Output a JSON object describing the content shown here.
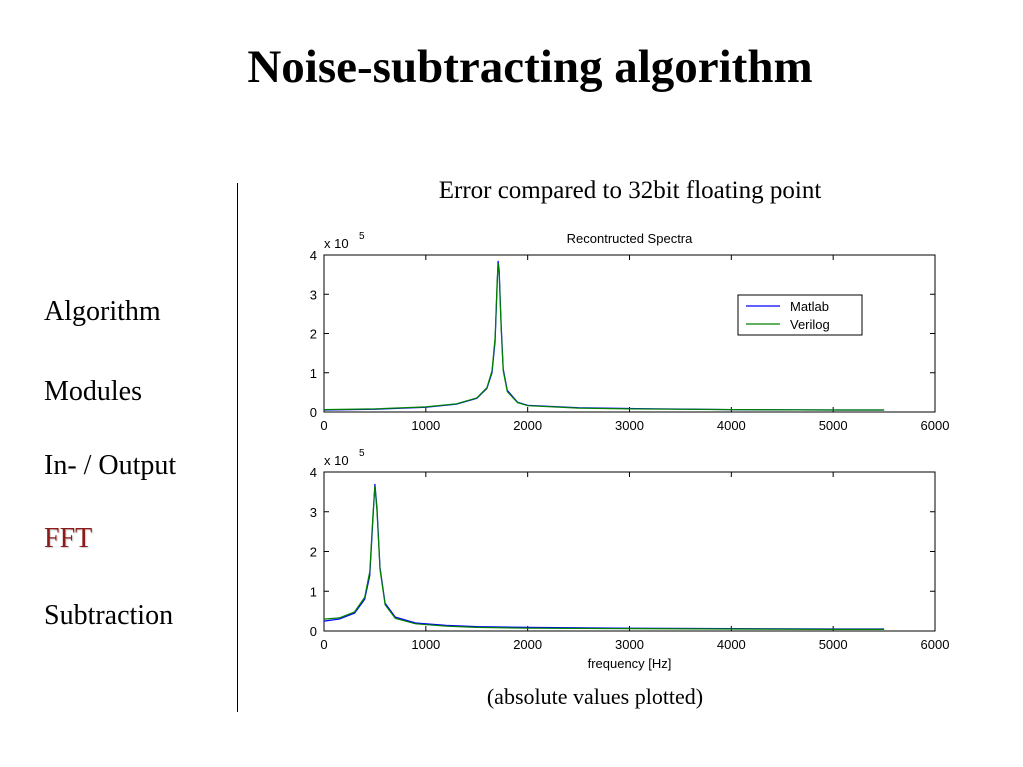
{
  "slide": {
    "title": "Noise-subtracting algorithm",
    "nav": [
      {
        "label": "Algorithm",
        "active": false
      },
      {
        "label": "Modules",
        "active": false
      },
      {
        "label": "In- / Output",
        "active": false
      },
      {
        "label": "FFT",
        "active": true
      },
      {
        "label": "Subtraction",
        "active": false
      }
    ],
    "active_color": "#8b1a1a",
    "chart_heading": "Error compared to 32bit floating point",
    "footnote": "(absolute values plotted)"
  },
  "chart_data": [
    {
      "type": "line",
      "title": "Recontructed Spectra",
      "xlabel": "",
      "ylabel": "",
      "exponent_label": "x 10",
      "exponent_power": "5",
      "xlim": [
        0,
        6000
      ],
      "ylim": [
        0,
        4
      ],
      "x_ticks": [
        0,
        1000,
        2000,
        3000,
        4000,
        5000,
        6000
      ],
      "y_ticks": [
        0,
        1,
        2,
        3,
        4
      ],
      "grid": false,
      "legend": "upper-right",
      "series": [
        {
          "name": "Matlab",
          "color": "#0000ff",
          "x": [
            0,
            500,
            1000,
            1300,
            1500,
            1600,
            1650,
            1680,
            1700,
            1710,
            1720,
            1740,
            1760,
            1800,
            1900,
            2000,
            2500,
            3000,
            4000,
            5000,
            5500
          ],
          "y": [
            0.05,
            0.07,
            0.12,
            0.2,
            0.35,
            0.6,
            1.0,
            1.8,
            3.2,
            3.85,
            3.6,
            2.2,
            1.1,
            0.55,
            0.25,
            0.17,
            0.11,
            0.09,
            0.06,
            0.05,
            0.05
          ]
        },
        {
          "name": "Verilog",
          "color": "#008000",
          "x": [
            0,
            500,
            1000,
            1300,
            1500,
            1600,
            1650,
            1680,
            1700,
            1710,
            1720,
            1740,
            1760,
            1800,
            1900,
            2000,
            2500,
            3000,
            4000,
            5000,
            5500
          ],
          "y": [
            0.06,
            0.08,
            0.13,
            0.21,
            0.36,
            0.62,
            1.05,
            1.9,
            3.3,
            3.8,
            3.5,
            2.1,
            1.05,
            0.52,
            0.24,
            0.16,
            0.1,
            0.08,
            0.06,
            0.05,
            0.05
          ]
        }
      ]
    },
    {
      "type": "line",
      "title": "",
      "xlabel": "frequency [Hz]",
      "ylabel": "",
      "exponent_label": "x 10",
      "exponent_power": "5",
      "xlim": [
        0,
        6000
      ],
      "ylim": [
        0,
        4
      ],
      "x_ticks": [
        0,
        1000,
        2000,
        3000,
        4000,
        5000,
        6000
      ],
      "y_ticks": [
        0,
        1,
        2,
        3,
        4
      ],
      "grid": false,
      "series": [
        {
          "name": "Matlab",
          "color": "#0000ff",
          "x": [
            0,
            150,
            300,
            400,
            450,
            480,
            500,
            520,
            550,
            600,
            700,
            900,
            1200,
            1500,
            2000,
            3000,
            4000,
            5000,
            5500
          ],
          "y": [
            0.25,
            0.3,
            0.45,
            0.8,
            1.4,
            2.8,
            3.7,
            3.1,
            1.6,
            0.7,
            0.35,
            0.2,
            0.14,
            0.11,
            0.09,
            0.07,
            0.06,
            0.05,
            0.05
          ]
        },
        {
          "name": "Verilog",
          "color": "#008000",
          "x": [
            0,
            150,
            300,
            400,
            450,
            480,
            500,
            520,
            550,
            600,
            700,
            900,
            1200,
            1500,
            2000,
            3000,
            4000,
            5000,
            5500
          ],
          "y": [
            0.3,
            0.33,
            0.48,
            0.85,
            1.5,
            2.9,
            3.65,
            3.0,
            1.55,
            0.66,
            0.32,
            0.18,
            0.12,
            0.09,
            0.07,
            0.06,
            0.05,
            0.04,
            0.04
          ]
        }
      ]
    }
  ]
}
